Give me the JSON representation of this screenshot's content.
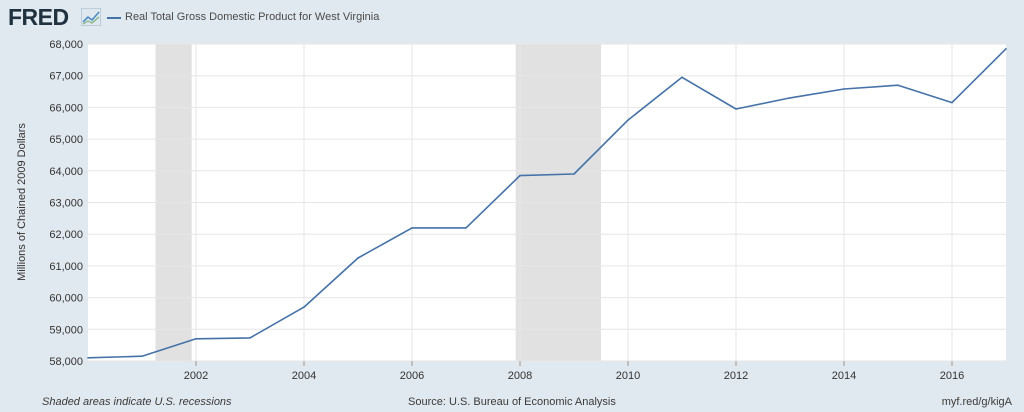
{
  "header": {
    "logo": "FRED",
    "legend_label": "Real Total Gross Domestic Product for West Virginia"
  },
  "footer": {
    "note": "Shaded areas indicate U.S. recessions",
    "source": "Source: U.S. Bureau of Economic Analysis",
    "link": "myf.red/g/kigA"
  },
  "colors": {
    "line": "#4572a7",
    "plot_bg": "#ffffff",
    "page_bg": "#e1e9f0",
    "recession": "#e1e1e1",
    "grid": "#e6e6e6"
  },
  "chart_data": {
    "type": "line",
    "title": "",
    "xlabel": "",
    "ylabel": "Millions of Chained 2009 Dollars",
    "xlim": [
      2000,
      2017
    ],
    "ylim": [
      58000,
      68000
    ],
    "xticks": [
      2002,
      2004,
      2006,
      2008,
      2010,
      2012,
      2014,
      2016
    ],
    "yticks": [
      58000,
      59000,
      60000,
      61000,
      62000,
      63000,
      64000,
      65000,
      66000,
      67000,
      68000
    ],
    "ytick_labels": [
      "58,000",
      "59,000",
      "60,000",
      "61,000",
      "62,000",
      "63,000",
      "64,000",
      "65,000",
      "66,000",
      "67,000",
      "68,000"
    ],
    "grid": true,
    "recessions": [
      [
        2001.25,
        2001.92
      ],
      [
        2007.92,
        2009.5
      ]
    ],
    "series": [
      {
        "name": "Real Total Gross Domestic Product for West Virginia",
        "x": [
          2000,
          2001,
          2002,
          2003,
          2004,
          2005,
          2006,
          2007,
          2008,
          2009,
          2010,
          2011,
          2012,
          2013,
          2014,
          2015,
          2016,
          2017
        ],
        "values": [
          58100,
          58150,
          58700,
          58730,
          59700,
          61250,
          62200,
          62200,
          63850,
          63900,
          65600,
          66950,
          65950,
          66300,
          66580,
          66700,
          66150,
          67850
        ]
      }
    ]
  }
}
